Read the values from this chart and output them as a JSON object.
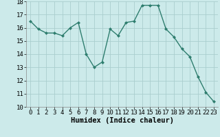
{
  "x": [
    0,
    1,
    2,
    3,
    4,
    5,
    6,
    7,
    8,
    9,
    10,
    11,
    12,
    13,
    14,
    15,
    16,
    17,
    18,
    19,
    20,
    21,
    22,
    23
  ],
  "y": [
    16.5,
    15.9,
    15.6,
    15.6,
    15.4,
    16.0,
    16.4,
    14.0,
    13.0,
    13.4,
    15.9,
    15.4,
    16.4,
    16.5,
    17.7,
    17.7,
    17.7,
    15.9,
    15.3,
    14.4,
    13.8,
    12.3,
    11.1,
    10.4
  ],
  "line_color": "#2e7d6e",
  "marker": "D",
  "marker_size": 2.0,
  "bg_color": "#cceaea",
  "grid_color": "#aacece",
  "xlabel": "Humidex (Indice chaleur)",
  "xlabel_fontsize": 7.5,
  "tick_fontsize": 6.5,
  "ylim": [
    10,
    18
  ],
  "xlim": [
    -0.5,
    23.5
  ],
  "yticks": [
    10,
    11,
    12,
    13,
    14,
    15,
    16,
    17,
    18
  ],
  "xticks": [
    0,
    1,
    2,
    3,
    4,
    5,
    6,
    7,
    8,
    9,
    10,
    11,
    12,
    13,
    14,
    15,
    16,
    17,
    18,
    19,
    20,
    21,
    22,
    23
  ],
  "linewidth": 1.0
}
